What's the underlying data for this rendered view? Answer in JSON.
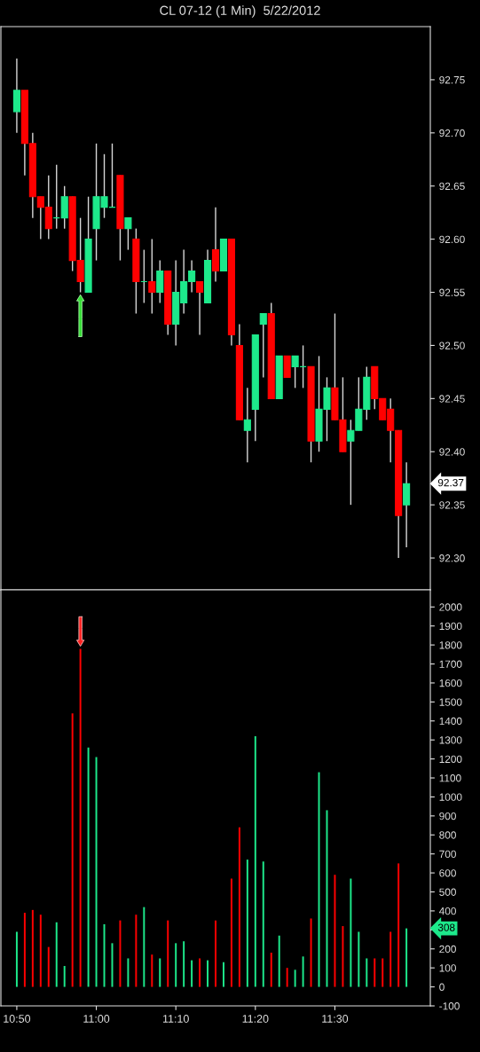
{
  "chart_data": [
    {
      "type": "candlestick",
      "title": "CL 07-12 (1 Min)  5/22/2012",
      "x": [
        "2012-05-22T10:50",
        "2012-05-22T10:51",
        "2012-05-22T10:52",
        "2012-05-22T10:53",
        "2012-05-22T10:54",
        "2012-05-22T10:55",
        "2012-05-22T10:56",
        "2012-05-22T10:57",
        "2012-05-22T10:58",
        "2012-05-22T10:59",
        "2012-05-22T11:00",
        "2012-05-22T11:01",
        "2012-05-22T11:02",
        "2012-05-22T11:03",
        "2012-05-22T11:04",
        "2012-05-22T11:05",
        "2012-05-22T11:06",
        "2012-05-22T11:07",
        "2012-05-22T11:08",
        "2012-05-22T11:09",
        "2012-05-22T11:10",
        "2012-05-22T11:11",
        "2012-05-22T11:12",
        "2012-05-22T11:13",
        "2012-05-22T11:14",
        "2012-05-22T11:15",
        "2012-05-22T11:16",
        "2012-05-22T11:17",
        "2012-05-22T11:18",
        "2012-05-22T11:19",
        "2012-05-22T11:20",
        "2012-05-22T11:21",
        "2012-05-22T11:22",
        "2012-05-22T11:23",
        "2012-05-22T11:24",
        "2012-05-22T11:25",
        "2012-05-22T11:26",
        "2012-05-22T11:27",
        "2012-05-22T11:28",
        "2012-05-22T11:29",
        "2012-05-22T11:30",
        "2012-05-22T11:31",
        "2012-05-22T11:32",
        "2012-05-22T11:33",
        "2012-05-22T11:34",
        "2012-05-22T11:35",
        "2012-05-22T11:36",
        "2012-05-22T11:37",
        "2012-05-22T11:38",
        "2012-05-22T11:39"
      ],
      "ohlc": [
        [
          92.72,
          92.77,
          92.7,
          92.74
        ],
        [
          92.74,
          92.74,
          92.66,
          92.69
        ],
        [
          92.69,
          92.7,
          92.62,
          92.64
        ],
        [
          92.64,
          92.64,
          92.6,
          92.63
        ],
        [
          92.63,
          92.66,
          92.6,
          92.61
        ],
        [
          92.62,
          92.67,
          92.61,
          92.62
        ],
        [
          92.62,
          92.65,
          92.61,
          92.64
        ],
        [
          92.64,
          92.64,
          92.57,
          92.58
        ],
        [
          92.58,
          92.62,
          92.55,
          92.56
        ],
        [
          92.55,
          92.64,
          92.55,
          92.6
        ],
        [
          92.61,
          92.69,
          92.58,
          92.64
        ],
        [
          92.63,
          92.68,
          92.62,
          92.64
        ],
        [
          92.63,
          92.69,
          92.63,
          92.63
        ],
        [
          92.66,
          92.66,
          92.58,
          92.61
        ],
        [
          92.61,
          92.62,
          92.59,
          92.62
        ],
        [
          92.6,
          92.61,
          92.53,
          92.56
        ],
        [
          92.56,
          92.59,
          92.54,
          92.56
        ],
        [
          92.56,
          92.6,
          92.53,
          92.55
        ],
        [
          92.55,
          92.58,
          92.54,
          92.57
        ],
        [
          92.57,
          92.57,
          92.51,
          92.52
        ],
        [
          92.52,
          92.58,
          92.5,
          92.55
        ],
        [
          92.54,
          92.59,
          92.53,
          92.56
        ],
        [
          92.56,
          92.58,
          92.55,
          92.57
        ],
        [
          92.56,
          92.56,
          92.51,
          92.55
        ],
        [
          92.54,
          92.59,
          92.54,
          92.58
        ],
        [
          92.59,
          92.63,
          92.56,
          92.57
        ],
        [
          92.57,
          92.6,
          92.57,
          92.6
        ],
        [
          92.6,
          92.6,
          92.5,
          92.51
        ],
        [
          92.5,
          92.52,
          92.43,
          92.43
        ],
        [
          92.42,
          92.46,
          92.39,
          92.43
        ],
        [
          92.44,
          92.51,
          92.41,
          92.51
        ],
        [
          92.52,
          92.53,
          92.47,
          92.53
        ],
        [
          92.53,
          92.54,
          92.45,
          92.45
        ],
        [
          92.45,
          92.49,
          92.45,
          92.49
        ],
        [
          92.49,
          92.49,
          92.47,
          92.47
        ],
        [
          92.48,
          92.49,
          92.46,
          92.49
        ],
        [
          92.48,
          92.5,
          92.46,
          92.48
        ],
        [
          92.48,
          92.48,
          92.39,
          92.41
        ],
        [
          92.41,
          92.49,
          92.4,
          92.44
        ],
        [
          92.44,
          92.47,
          92.41,
          92.46
        ],
        [
          92.46,
          92.53,
          92.43,
          92.43
        ],
        [
          92.43,
          92.47,
          92.4,
          92.4
        ],
        [
          92.41,
          92.43,
          92.35,
          92.42
        ],
        [
          92.42,
          92.47,
          92.42,
          92.44
        ],
        [
          92.44,
          92.48,
          92.43,
          92.47
        ],
        [
          92.48,
          92.48,
          92.44,
          92.45
        ],
        [
          92.45,
          92.45,
          92.43,
          92.43
        ],
        [
          92.44,
          92.45,
          92.39,
          92.42
        ],
        [
          92.42,
          92.42,
          92.3,
          92.34
        ],
        [
          92.35,
          92.39,
          92.31,
          92.37
        ]
      ],
      "colors": [
        "#1de98b",
        "#ff0000",
        "#ff0000",
        "#ff0000",
        "#ff0000",
        "#1de98b",
        "#1de98b",
        "#ff0000",
        "#ff0000",
        "#1de98b",
        "#1de98b",
        "#1de98b",
        "#1de98b",
        "#ff0000",
        "#1de98b",
        "#ff0000",
        "#1de98b",
        "#ff0000",
        "#1de98b",
        "#ff0000",
        "#1de98b",
        "#1de98b",
        "#1de98b",
        "#ff0000",
        "#1de98b",
        "#ff0000",
        "#1de98b",
        "#ff0000",
        "#ff0000",
        "#1de98b",
        "#1de98b",
        "#1de98b",
        "#ff0000",
        "#1de98b",
        "#ff0000",
        "#1de98b",
        "#1de98b",
        "#ff0000",
        "#1de98b",
        "#1de98b",
        "#ff0000",
        "#ff0000",
        "#1de98b",
        "#1de98b",
        "#1de98b",
        "#ff0000",
        "#ff0000",
        "#ff0000",
        "#ff0000",
        "#1de98b"
      ],
      "xlim": [
        "2012-05-22T10:48",
        "2012-05-22T11:42"
      ],
      "ylim": [
        92.27,
        92.8
      ],
      "yticks": [
        {
          "value": 92.3,
          "label": "92.30"
        },
        92.35,
        {
          "value": 92.4,
          "label": "92.40"
        },
        92.45,
        {
          "value": 92.5,
          "label": "92.50"
        },
        92.55,
        {
          "value": 92.6,
          "label": "92.60"
        },
        92.65,
        {
          "value": 92.7,
          "label": "92.70"
        },
        92.75
      ],
      "tick_labels": "y",
      "annotations": [
        "92.37"
      ]
    },
    {
      "type": "bar",
      "x": [
        "2012-05-22T10:50",
        "2012-05-22T10:51",
        "2012-05-22T10:52",
        "2012-05-22T10:53",
        "2012-05-22T10:54",
        "2012-05-22T10:55",
        "2012-05-22T10:56",
        "2012-05-22T10:57",
        "2012-05-22T10:58",
        "2012-05-22T10:59",
        "2012-05-22T11:00",
        "2012-05-22T11:01",
        "2012-05-22T11:02",
        "2012-05-22T11:03",
        "2012-05-22T11:04",
        "2012-05-22T11:05",
        "2012-05-22T11:06",
        "2012-05-22T11:07",
        "2012-05-22T11:08",
        "2012-05-22T11:09",
        "2012-05-22T11:10",
        "2012-05-22T11:11",
        "2012-05-22T11:12",
        "2012-05-22T11:13",
        "2012-05-22T11:14",
        "2012-05-22T11:15",
        "2012-05-22T11:16",
        "2012-05-22T11:17",
        "2012-05-22T11:18",
        "2012-05-22T11:19",
        "2012-05-22T11:20",
        "2012-05-22T11:21",
        "2012-05-22T11:22",
        "2012-05-22T11:23",
        "2012-05-22T11:24",
        "2012-05-22T11:25",
        "2012-05-22T11:26",
        "2012-05-22T11:27",
        "2012-05-22T11:28",
        "2012-05-22T11:29",
        "2012-05-22T11:30",
        "2012-05-22T11:31",
        "2012-05-22T11:32",
        "2012-05-22T11:33",
        "2012-05-22T11:34",
        "2012-05-22T11:35",
        "2012-05-22T11:36",
        "2012-05-22T11:37",
        "2012-05-22T11:38",
        "2012-05-22T11:39"
      ],
      "values": [
        290,
        390,
        405,
        380,
        210,
        340,
        110,
        1440,
        1780,
        1260,
        1210,
        330,
        230,
        350,
        150,
        380,
        420,
        170,
        150,
        350,
        230,
        240,
        140,
        150,
        140,
        350,
        130,
        570,
        840,
        670,
        1320,
        660,
        180,
        270,
        100,
        90,
        160,
        360,
        1130,
        930,
        590,
        320,
        570,
        290,
        150,
        150,
        150,
        290,
        650,
        308
      ],
      "colors": [
        "#1de98b",
        "#ff0000",
        "#ff0000",
        "#ff0000",
        "#ff0000",
        "#1de98b",
        "#1de98b",
        "#ff0000",
        "#ff0000",
        "#1de98b",
        "#1de98b",
        "#1de98b",
        "#1de98b",
        "#ff0000",
        "#1de98b",
        "#ff0000",
        "#1de98b",
        "#ff0000",
        "#1de98b",
        "#ff0000",
        "#1de98b",
        "#1de98b",
        "#1de98b",
        "#ff0000",
        "#1de98b",
        "#ff0000",
        "#1de98b",
        "#ff0000",
        "#ff0000",
        "#1de98b",
        "#1de98b",
        "#1de98b",
        "#ff0000",
        "#1de98b",
        "#ff0000",
        "#1de98b",
        "#1de98b",
        "#ff0000",
        "#1de98b",
        "#1de98b",
        "#ff0000",
        "#ff0000",
        "#1de98b",
        "#1de98b",
        "#1de98b",
        "#ff0000",
        "#ff0000",
        "#ff0000",
        "#ff0000",
        "#1de98b"
      ],
      "xlim": [
        "2012-05-22T10:48",
        "2012-05-22T11:42"
      ],
      "xticks": [
        {
          "value": "2012-05-22T10:50",
          "label": "10:50"
        },
        {
          "value": "2012-05-22T11:00",
          "label": "11:00"
        },
        {
          "value": "2012-05-22T11:10",
          "label": "11:10"
        },
        {
          "value": "2012-05-22T11:20",
          "label": "11:20"
        },
        {
          "value": "2012-05-22T11:30",
          "label": "11:30"
        }
      ],
      "ylim": [
        -100,
        2090
      ],
      "yticks": [
        -100,
        0,
        100,
        200,
        {
          "value": 300,
          "label": null
        },
        400,
        500,
        600,
        700,
        800,
        900,
        1000,
        1100,
        1200,
        1300,
        1400,
        1500,
        1600,
        1700,
        1800,
        1900,
        2000
      ],
      "annotations": [
        "308"
      ]
    }
  ]
}
